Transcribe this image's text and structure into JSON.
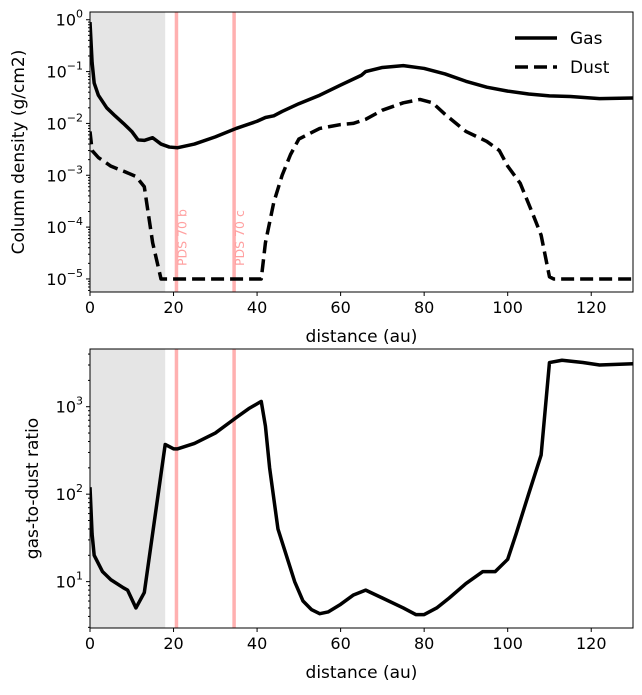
{
  "chart_data": [
    {
      "type": "line",
      "xlabel": "distance (au)",
      "ylabel": "Column density (g/cm2)",
      "xlim": [
        0,
        130
      ],
      "ylim": [
        5.6e-06,
        1.41
      ],
      "yscale": "log",
      "xticks": [
        0,
        20,
        40,
        60,
        80,
        100,
        120
      ],
      "yticks_exp": [
        0,
        -1,
        -2,
        -3,
        -4,
        -5
      ],
      "legend": {
        "placement": "top-right",
        "entries": [
          "Gas",
          "Dust"
        ]
      },
      "shaded_region": {
        "x": [
          0,
          18
        ],
        "color": "#e5e5e5"
      },
      "vlines": [
        {
          "x": 20.7,
          "label": "PDS 70 b",
          "color": "#ffb0b0"
        },
        {
          "x": 34.5,
          "label": "PDS 70 c",
          "color": "#ffb0b0"
        }
      ],
      "series": [
        {
          "name": "Gas",
          "style": "solid",
          "color": "#000000",
          "x": [
            0,
            0.5,
            1,
            2,
            4,
            6,
            8,
            10,
            11.5,
            13,
            15,
            17,
            19,
            21,
            25,
            30,
            35,
            40,
            42,
            44,
            46,
            50,
            55,
            60,
            65,
            66,
            70,
            75,
            80,
            85,
            90,
            95,
            100,
            105,
            110,
            115,
            122,
            130
          ],
          "y": [
            0.9,
            0.15,
            0.06,
            0.035,
            0.02,
            0.014,
            0.01,
            0.007,
            0.0048,
            0.0047,
            0.0053,
            0.004,
            0.0035,
            0.0034,
            0.004,
            0.0055,
            0.008,
            0.011,
            0.013,
            0.014,
            0.017,
            0.024,
            0.035,
            0.055,
            0.085,
            0.1,
            0.12,
            0.13,
            0.115,
            0.09,
            0.065,
            0.05,
            0.042,
            0.037,
            0.034,
            0.033,
            0.03,
            0.031
          ]
        },
        {
          "name": "Dust",
          "style": "dashed",
          "color": "#000000",
          "x": [
            0,
            0.5,
            2,
            5,
            8,
            11,
            13,
            15,
            17,
            18,
            41,
            42,
            44,
            46,
            48,
            50,
            55,
            60,
            63,
            66,
            70,
            75,
            79,
            82,
            85,
            90,
            95,
            98,
            100,
            103,
            106,
            108,
            110,
            111,
            130
          ],
          "y": [
            0.007,
            0.003,
            0.0022,
            0.0015,
            0.0012,
            0.00095,
            0.0006,
            5e-05,
            1e-05,
            1e-05,
            1e-05,
            5e-05,
            0.0003,
            0.001,
            0.0025,
            0.005,
            0.008,
            0.0095,
            0.01,
            0.012,
            0.018,
            0.025,
            0.029,
            0.025,
            0.015,
            0.007,
            0.0045,
            0.003,
            0.0015,
            0.0007,
            0.00018,
            7e-05,
            1.1e-05,
            1e-05,
            1e-05
          ]
        }
      ]
    },
    {
      "type": "line",
      "xlabel": "distance (au)",
      "ylabel": "gas-to-dust ratio",
      "xlim": [
        0,
        130
      ],
      "ylim": [
        2.95,
        4570
      ],
      "yscale": "log",
      "xticks": [
        0,
        20,
        40,
        60,
        80,
        100,
        120
      ],
      "yticks_exp": [
        1,
        2,
        3
      ],
      "shaded_region": {
        "x": [
          0,
          18
        ],
        "color": "#e5e5e5"
      },
      "vlines": [
        {
          "x": 20.7,
          "color": "#ffb0b0"
        },
        {
          "x": 34.5,
          "color": "#ffb0b0"
        }
      ],
      "series": [
        {
          "style": "solid",
          "color": "#000000",
          "x": [
            0,
            0.5,
            1,
            3,
            5,
            8,
            9,
            11,
            13,
            18,
            20,
            21,
            25,
            30,
            35,
            38,
            41,
            42,
            43,
            45,
            47,
            49,
            51,
            53,
            55,
            57,
            60,
            63,
            66,
            70,
            75,
            78,
            80,
            83,
            86,
            90,
            94,
            97,
            100,
            102,
            105,
            108,
            110,
            113,
            118,
            122,
            130
          ],
          "y": [
            120,
            35,
            20,
            13,
            10.5,
            8.5,
            8,
            5,
            7.5,
            370,
            330,
            330,
            380,
            500,
            750,
            950,
            1150,
            600,
            200,
            40,
            20,
            10,
            6,
            4.8,
            4.3,
            4.5,
            5.5,
            7,
            8,
            6.5,
            5,
            4.2,
            4.2,
            5,
            6.5,
            9.5,
            13,
            13,
            18,
            35,
            100,
            280,
            3200,
            3400,
            3200,
            3000,
            3100
          ]
        }
      ]
    }
  ]
}
